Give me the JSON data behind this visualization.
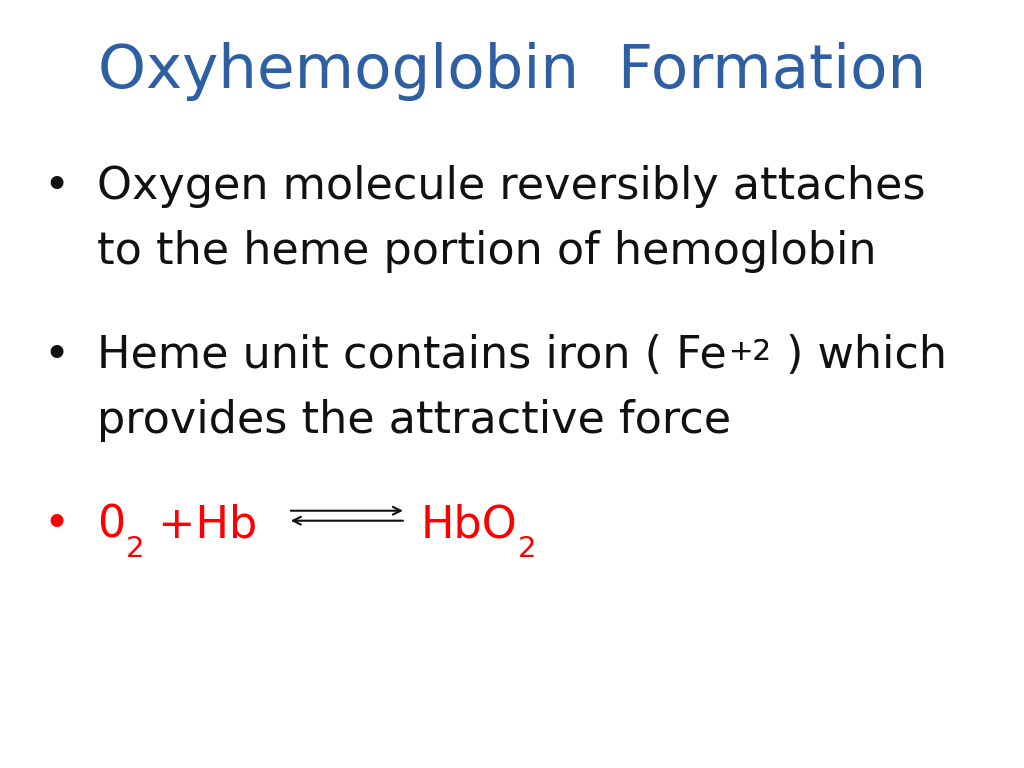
{
  "title": "Oxyhemoglobin  Formation",
  "title_color": "#2E5FA3",
  "title_fontsize": 44,
  "bg_color": "#FFFFFF",
  "bullet_color": "#111111",
  "red_color": "#FF0000",
  "arrow_color": "#111111",
  "bullet1_line1": "Oxygen molecule reversibly attaches",
  "bullet1_line2": "to the heme portion of hemoglobin",
  "bullet2_pre": "Heme unit contains iron ( Fe",
  "bullet2_sup": "+2",
  "bullet2_post": " ) which",
  "bullet2_line2": "provides the attractive force",
  "bullet_fontsize": 32,
  "sup_fontsize": 21,
  "sub_fontsize": 21,
  "fig_width": 10.24,
  "fig_height": 7.68,
  "dpi": 100
}
